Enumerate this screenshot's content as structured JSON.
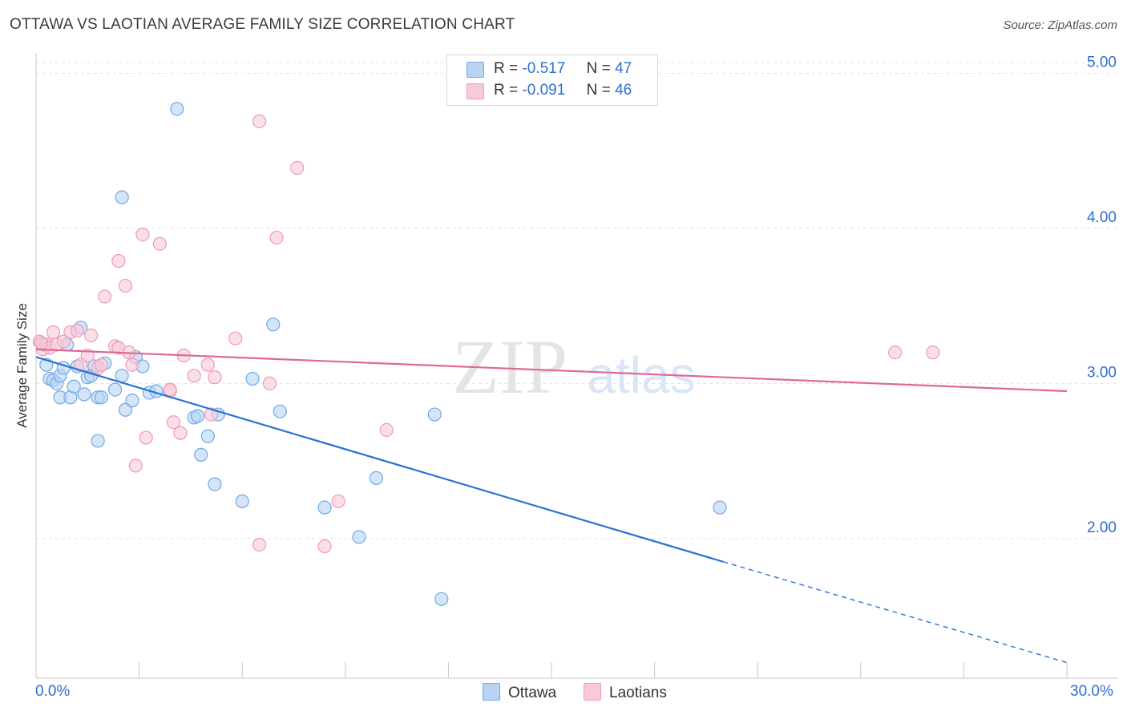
{
  "chart_data": {
    "type": "scatter",
    "title": "OTTAWA VS LAOTIAN AVERAGE FAMILY SIZE CORRELATION CHART",
    "source": "Source: ZipAtlas.com",
    "ylabel": "Average Family Size",
    "xlabel": "",
    "xlim": [
      0,
      30
    ],
    "ylim": [
      1.1,
      5.1
    ],
    "x_tick_labels": [
      "0.0%",
      "30.0%"
    ],
    "y_ticks": [
      2.0,
      3.0,
      4.0,
      5.0
    ],
    "y_tick_labels": [
      "2.00",
      "3.00",
      "4.00",
      "5.00"
    ],
    "watermark": {
      "zip": "ZIP",
      "atlas": "atlas"
    },
    "series": [
      {
        "name": "Ottawa",
        "color": "#6fa8e8",
        "fill": "#b8d3f3",
        "line_color": "#2a72d4",
        "R": "-0.517",
        "N": "47",
        "trend": {
          "x0": 0,
          "y0": 3.17,
          "x1": 20.0,
          "y1": 1.85,
          "dash_to_x": 30,
          "dash_to_y": 1.2
        },
        "points": [
          [
            0.2,
            3.25
          ],
          [
            0.3,
            3.12
          ],
          [
            0.4,
            3.03
          ],
          [
            0.5,
            3.02
          ],
          [
            0.6,
            3.0
          ],
          [
            0.7,
            3.05
          ],
          [
            0.7,
            2.91
          ],
          [
            0.8,
            3.1
          ],
          [
            0.9,
            3.25
          ],
          [
            1.0,
            2.91
          ],
          [
            1.1,
            2.98
          ],
          [
            1.2,
            3.11
          ],
          [
            1.3,
            3.36
          ],
          [
            1.4,
            2.93
          ],
          [
            1.5,
            3.04
          ],
          [
            1.6,
            3.05
          ],
          [
            1.7,
            3.11
          ],
          [
            1.8,
            2.63
          ],
          [
            1.8,
            2.91
          ],
          [
            1.9,
            2.91
          ],
          [
            2.0,
            3.13
          ],
          [
            2.3,
            2.96
          ],
          [
            2.5,
            3.05
          ],
          [
            2.5,
            4.2
          ],
          [
            2.6,
            2.83
          ],
          [
            2.8,
            2.89
          ],
          [
            2.9,
            3.17
          ],
          [
            3.1,
            3.11
          ],
          [
            3.3,
            2.94
          ],
          [
            3.5,
            2.95
          ],
          [
            4.1,
            4.77
          ],
          [
            4.6,
            2.78
          ],
          [
            4.7,
            2.79
          ],
          [
            4.8,
            2.54
          ],
          [
            5.0,
            2.66
          ],
          [
            5.2,
            2.35
          ],
          [
            5.3,
            2.8
          ],
          [
            6.0,
            2.24
          ],
          [
            6.3,
            3.03
          ],
          [
            6.9,
            3.38
          ],
          [
            7.1,
            2.82
          ],
          [
            8.4,
            2.2
          ],
          [
            9.4,
            2.01
          ],
          [
            9.9,
            2.39
          ],
          [
            11.6,
            2.8
          ],
          [
            11.8,
            1.61
          ],
          [
            19.9,
            2.2
          ]
        ]
      },
      {
        "name": "Laotians",
        "color": "#ee9ab5",
        "fill": "#f8c9d8",
        "line_color": "#e0679a",
        "R": "-0.091",
        "N": "46",
        "trend": {
          "x0": 0,
          "y0": 3.22,
          "x1": 30,
          "y1": 2.95
        },
        "points": [
          [
            0.1,
            3.27
          ],
          [
            0.2,
            3.22
          ],
          [
            0.3,
            3.25
          ],
          [
            0.4,
            3.23
          ],
          [
            0.5,
            3.33
          ],
          [
            0.6,
            3.25
          ],
          [
            0.8,
            3.27
          ],
          [
            1.0,
            3.33
          ],
          [
            1.2,
            3.34
          ],
          [
            1.3,
            3.12
          ],
          [
            1.5,
            3.18
          ],
          [
            1.6,
            3.31
          ],
          [
            1.8,
            3.1
          ],
          [
            1.9,
            3.12
          ],
          [
            2.0,
            3.56
          ],
          [
            2.3,
            3.24
          ],
          [
            2.4,
            3.23
          ],
          [
            2.4,
            3.79
          ],
          [
            2.6,
            3.63
          ],
          [
            2.7,
            3.2
          ],
          [
            2.8,
            3.12
          ],
          [
            2.9,
            2.47
          ],
          [
            3.1,
            3.96
          ],
          [
            3.2,
            2.65
          ],
          [
            3.6,
            3.9
          ],
          [
            3.9,
            2.95
          ],
          [
            3.9,
            2.96
          ],
          [
            4.0,
            2.75
          ],
          [
            4.2,
            2.68
          ],
          [
            4.3,
            3.18
          ],
          [
            4.6,
            3.05
          ],
          [
            5.0,
            3.12
          ],
          [
            5.1,
            2.8
          ],
          [
            5.2,
            3.04
          ],
          [
            5.8,
            3.29
          ],
          [
            6.5,
            1.96
          ],
          [
            6.5,
            4.69
          ],
          [
            6.8,
            3.0
          ],
          [
            7.0,
            3.94
          ],
          [
            7.6,
            4.39
          ],
          [
            8.4,
            1.95
          ],
          [
            8.8,
            2.24
          ],
          [
            10.2,
            2.7
          ],
          [
            25.0,
            3.2
          ],
          [
            26.1,
            3.2
          ],
          [
            0.15,
            3.26
          ]
        ]
      }
    ]
  },
  "legend": {
    "rows": [
      {
        "r_label": "R =",
        "r_value": "-0.517",
        "n_label": "N =",
        "n_value": "47"
      },
      {
        "r_label": "R =",
        "r_value": "-0.091",
        "n_label": "N =",
        "n_value": "46"
      }
    ],
    "bottom": [
      "Ottawa",
      "Laotians"
    ]
  }
}
